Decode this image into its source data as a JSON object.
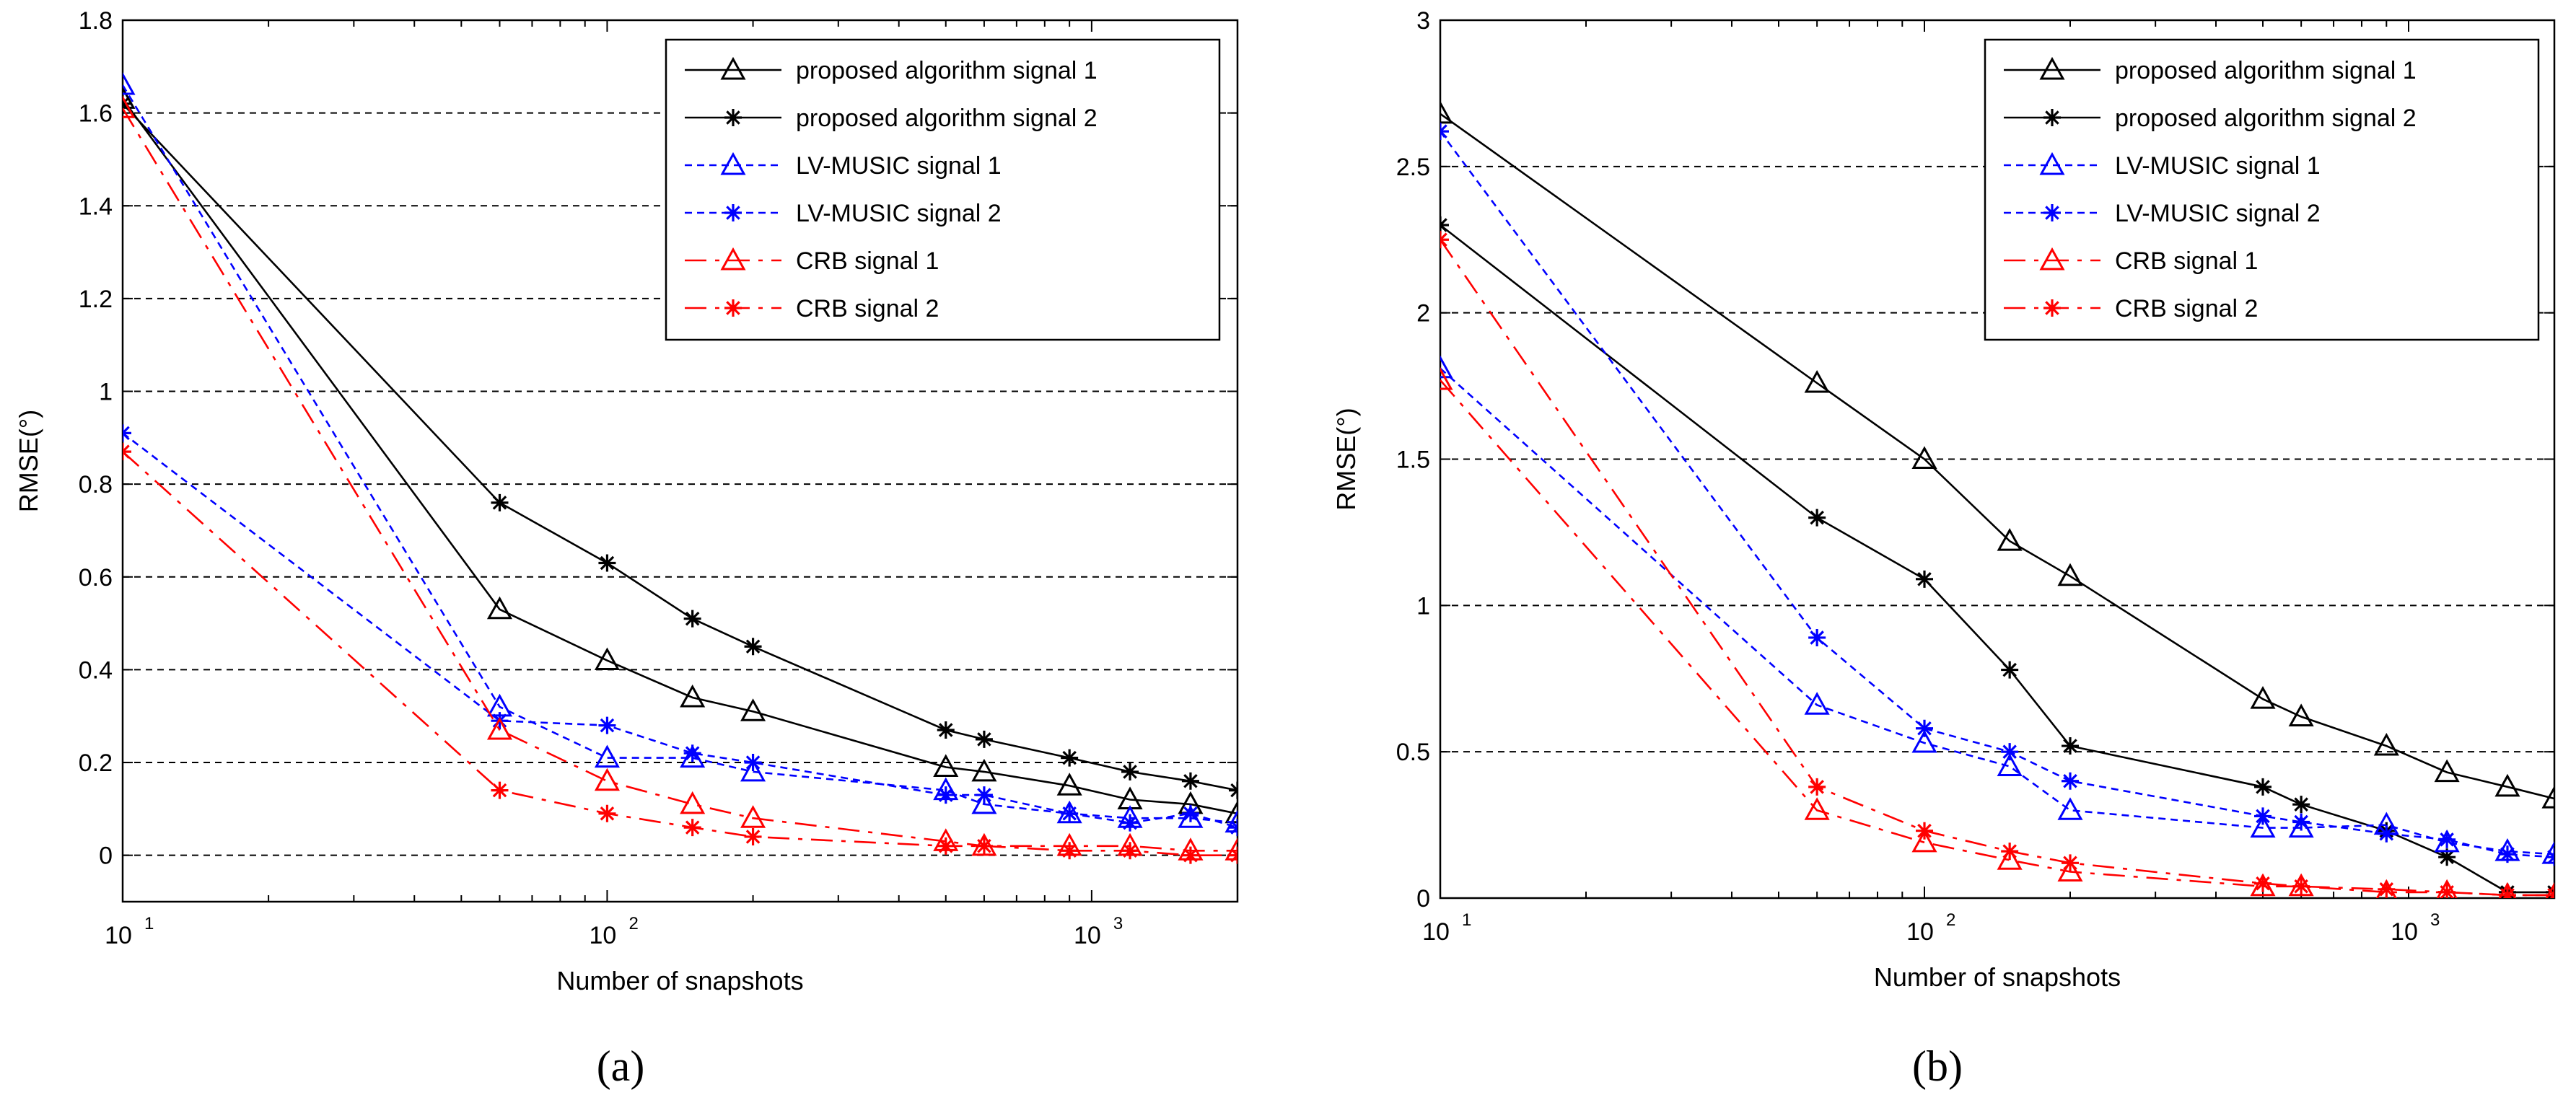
{
  "subfigure_labels": [
    "(a)",
    "(b)"
  ],
  "chart_data": [
    {
      "type": "line",
      "panel": "(a)",
      "xlabel": "Number of snapshots",
      "ylabel": "RMSE(°)",
      "xscale": "log",
      "xlim": [
        10,
        2000
      ],
      "ylim": [
        -0.1,
        1.8
      ],
      "yticks": [
        "0",
        "0.2",
        "0.4",
        "0.6",
        "0.8",
        "1",
        "1.2",
        "1.4",
        "1.6",
        "1.8"
      ],
      "xticks": [
        {
          "base": "10",
          "exp": "1"
        },
        {
          "base": "10",
          "exp": "2"
        },
        {
          "base": "10",
          "exp": "3"
        }
      ],
      "grid": "horizontal dashed",
      "legend_position": "top-right",
      "x": [
        10,
        60,
        100,
        150,
        200,
        500,
        600,
        900,
        1200,
        1600,
        2000
      ],
      "series": [
        {
          "name": "proposed algorithm signal 1",
          "color": "#000000",
          "dash": "solid",
          "marker": "triangle",
          "values": [
            1.63,
            0.53,
            0.42,
            0.34,
            0.31,
            0.19,
            0.18,
            0.15,
            0.12,
            0.11,
            0.09
          ]
        },
        {
          "name": "proposed algorithm signal 2",
          "color": "#000000",
          "dash": "solid",
          "marker": "star",
          "values": [
            1.62,
            0.76,
            0.63,
            0.51,
            0.45,
            0.27,
            0.25,
            0.21,
            0.18,
            0.16,
            0.14
          ]
        },
        {
          "name": "LV-MUSIC signal 1",
          "color": "#0000ff",
          "dash": "dotted",
          "marker": "triangle",
          "values": [
            1.66,
            0.32,
            0.21,
            0.21,
            0.18,
            0.14,
            0.11,
            0.09,
            0.08,
            0.08,
            0.07
          ]
        },
        {
          "name": "LV-MUSIC signal 2",
          "color": "#0000ff",
          "dash": "dotted",
          "marker": "star",
          "values": [
            0.91,
            0.29,
            0.28,
            0.22,
            0.2,
            0.13,
            0.13,
            0.09,
            0.07,
            0.09,
            0.06
          ]
        },
        {
          "name": "CRB signal 1",
          "color": "#ff0000",
          "dash": "dashdot",
          "marker": "triangle",
          "values": [
            1.61,
            0.27,
            0.16,
            0.11,
            0.08,
            0.03,
            0.02,
            0.02,
            0.02,
            0.01,
            0.01
          ]
        },
        {
          "name": "CRB signal 2",
          "color": "#ff0000",
          "dash": "dashdot",
          "marker": "star",
          "values": [
            0.87,
            0.14,
            0.09,
            0.06,
            0.04,
            0.02,
            0.02,
            0.01,
            0.01,
            0.0,
            0.0
          ]
        }
      ]
    },
    {
      "type": "line",
      "panel": "(b)",
      "xlabel": "Number of snapshots",
      "ylabel": "RMSE(°)",
      "xscale": "log",
      "xlim": [
        10,
        2000
      ],
      "ylim": [
        0,
        3
      ],
      "yticks": [
        "0",
        "0.5",
        "1",
        "1.5",
        "2",
        "2.5",
        "3"
      ],
      "xticks": [
        {
          "base": "10",
          "exp": "1"
        },
        {
          "base": "10",
          "exp": "2"
        },
        {
          "base": "10",
          "exp": "3"
        }
      ],
      "grid": "horizontal dashed",
      "legend_position": "top-right",
      "x": [
        10,
        60,
        100,
        150,
        200,
        500,
        600,
        900,
        1200,
        1600,
        2000
      ],
      "series": [
        {
          "name": "proposed algorithm signal 1",
          "color": "#000000",
          "dash": "solid",
          "marker": "triangle",
          "values": [
            2.68,
            1.76,
            1.5,
            1.22,
            1.1,
            0.68,
            0.62,
            0.52,
            0.43,
            0.38,
            0.34
          ]
        },
        {
          "name": "proposed algorithm signal 2",
          "color": "#000000",
          "dash": "solid",
          "marker": "star",
          "values": [
            2.3,
            1.3,
            1.09,
            0.78,
            0.52,
            0.38,
            0.32,
            0.23,
            0.14,
            0.02,
            0.02
          ]
        },
        {
          "name": "LV-MUSIC signal 1",
          "color": "#0000ff",
          "dash": "dotted",
          "marker": "triangle",
          "values": [
            1.81,
            0.66,
            0.53,
            0.45,
            0.3,
            0.24,
            0.24,
            0.25,
            0.19,
            0.16,
            0.15
          ]
        },
        {
          "name": "LV-MUSIC signal 2",
          "color": "#0000ff",
          "dash": "dotted",
          "marker": "star",
          "values": [
            2.62,
            0.89,
            0.58,
            0.5,
            0.4,
            0.28,
            0.26,
            0.22,
            0.2,
            0.15,
            0.14
          ]
        },
        {
          "name": "CRB signal 1",
          "color": "#ff0000",
          "dash": "dashdot",
          "marker": "triangle",
          "values": [
            1.77,
            0.3,
            0.19,
            0.13,
            0.09,
            0.04,
            0.04,
            0.02,
            0.02,
            0.01,
            0.01
          ]
        },
        {
          "name": "CRB signal 2",
          "color": "#ff0000",
          "dash": "dashdot",
          "marker": "star",
          "values": [
            2.25,
            0.38,
            0.23,
            0.16,
            0.12,
            0.05,
            0.04,
            0.03,
            0.02,
            0.01,
            0.01
          ]
        }
      ]
    }
  ]
}
